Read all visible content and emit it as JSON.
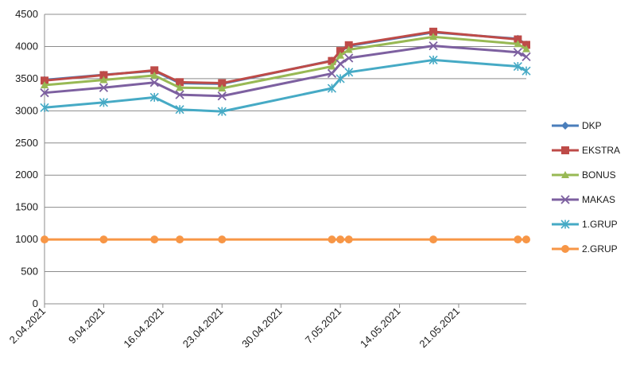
{
  "chart_data": {
    "type": "line",
    "ylim": [
      0,
      4500
    ],
    "y_ticks": [
      "0",
      "500",
      "1000",
      "1500",
      "2000",
      "2500",
      "3000",
      "3500",
      "4000",
      "4500"
    ],
    "x_axis": {
      "min_date": "2021-04-02",
      "max_date": "2021-05-29",
      "tick_labels": [
        "2.04.2021",
        "9.04.2021",
        "16.04.2021",
        "23.04.2021",
        "30.04.2021",
        "7.05.2021",
        "14.05.2021",
        "21.05.2021"
      ],
      "tick_dates": [
        "2021-04-02",
        "2021-04-09",
        "2021-04-16",
        "2021-04-23",
        "2021-04-30",
        "2021-05-07",
        "2021-05-14",
        "2021-05-21"
      ]
    },
    "grid": "horizontal",
    "legend_position": "right",
    "x": [
      "2021-04-02",
      "2021-04-09",
      "2021-04-15",
      "2021-04-18",
      "2021-04-23",
      "2021-05-06",
      "2021-05-07",
      "2021-05-08",
      "2021-05-18",
      "2021-05-28",
      "2021-05-29"
    ],
    "series": [
      {
        "name": "DKP",
        "color": "#4a7ebb",
        "marker": "diamond",
        "values": [
          3480,
          3560,
          3620,
          3430,
          3420,
          3780,
          3920,
          4010,
          4220,
          4120,
          4030
        ]
      },
      {
        "name": "EKSTRA",
        "color": "#be4b48",
        "marker": "square",
        "values": [
          3470,
          3555,
          3630,
          3445,
          3430,
          3775,
          3930,
          4020,
          4230,
          4110,
          4025
        ]
      },
      {
        "name": "BONUS",
        "color": "#98b954",
        "marker": "triangle",
        "values": [
          3400,
          3480,
          3550,
          3360,
          3350,
          3690,
          3860,
          3950,
          4150,
          4040,
          3960
        ]
      },
      {
        "name": "MAKAS",
        "color": "#7d60a0",
        "marker": "x",
        "values": [
          3280,
          3360,
          3440,
          3250,
          3230,
          3580,
          3730,
          3820,
          4010,
          3910,
          3840
        ]
      },
      {
        "name": "1.GRUP",
        "color": "#46aac5",
        "marker": "star",
        "values": [
          3050,
          3130,
          3210,
          3020,
          2990,
          3350,
          3500,
          3600,
          3790,
          3690,
          3620
        ]
      },
      {
        "name": "2.GRUP",
        "color": "#f79646",
        "marker": "circle",
        "values": [
          1000,
          1000,
          1000,
          1000,
          1000,
          1000,
          1000,
          1000,
          1000,
          1000,
          1000
        ]
      }
    ]
  }
}
